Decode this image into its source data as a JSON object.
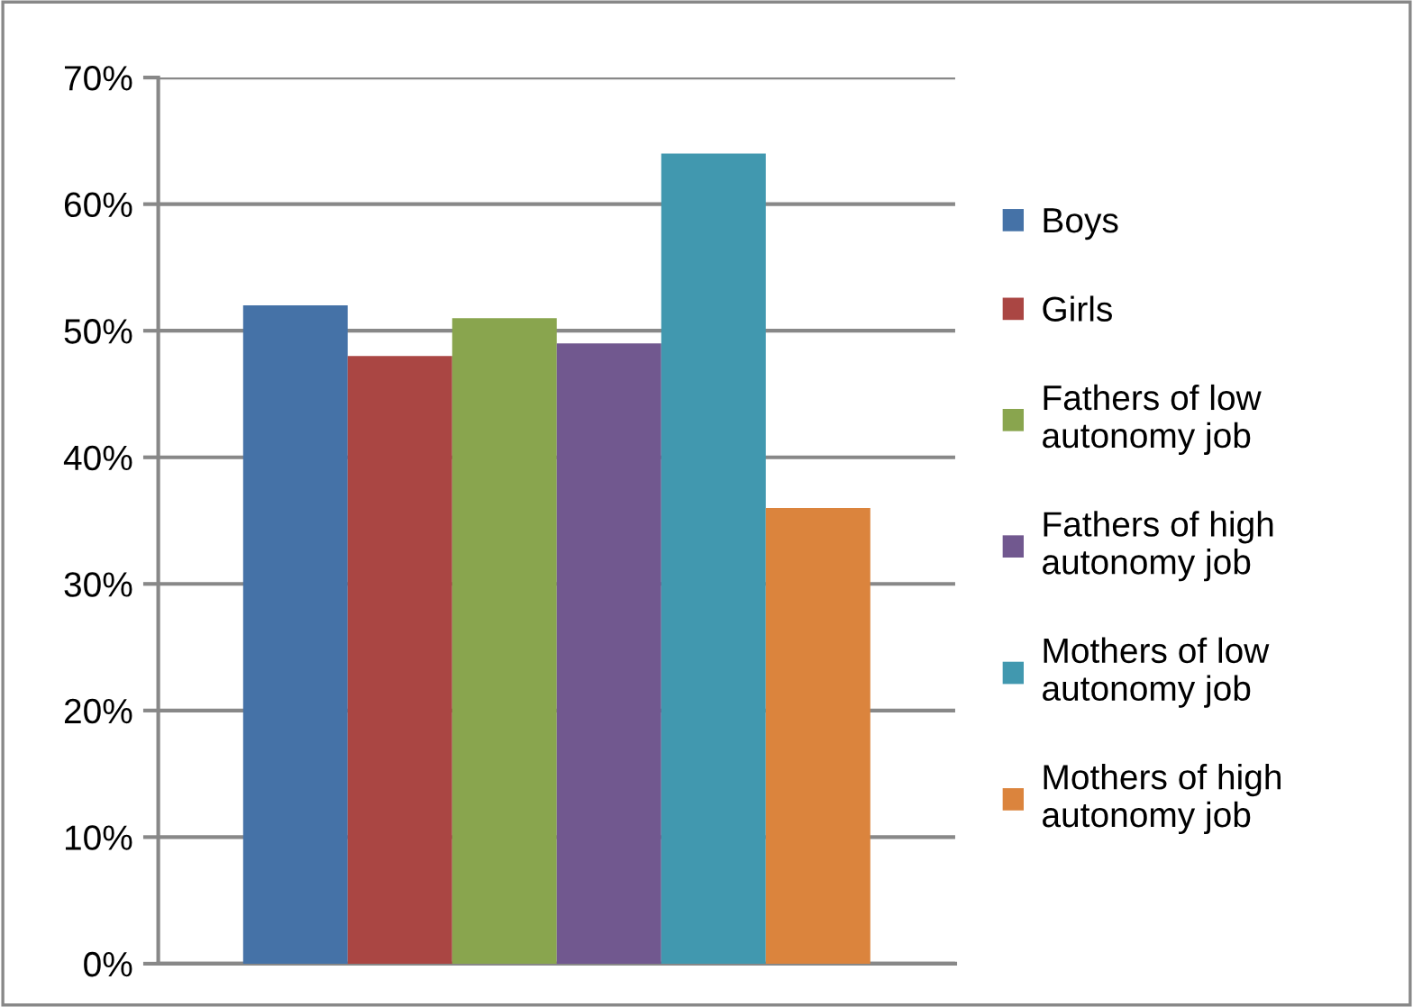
{
  "chart_data": {
    "type": "bar",
    "categories": [
      null
    ],
    "series": [
      {
        "name": "Boys",
        "color": "#4572a7",
        "values": [
          52
        ]
      },
      {
        "name": "Girls",
        "color": "#aa4643",
        "values": [
          48
        ]
      },
      {
        "name": "Fathers of low\nautonomy job",
        "color": "#89a54e",
        "values": [
          51
        ]
      },
      {
        "name": "Fathers of high\nautonomy job",
        "color": "#71588f",
        "values": [
          49
        ]
      },
      {
        "name": "Mothers of low\nautonomy job",
        "color": "#4198af",
        "values": [
          64
        ]
      },
      {
        "name": "Mothers of high\nautonomy job",
        "color": "#db843d",
        "values": [
          36
        ]
      }
    ],
    "ylim": [
      0,
      70
    ],
    "yticks": [
      {
        "value": 0,
        "label": "0%"
      },
      {
        "value": 10,
        "label": "10%"
      },
      {
        "value": 20,
        "label": "20%"
      },
      {
        "value": 30,
        "label": "30%"
      },
      {
        "value": 40,
        "label": "40%"
      },
      {
        "value": 50,
        "label": "50%"
      },
      {
        "value": 60,
        "label": "60%"
      },
      {
        "value": 70,
        "label": "70%"
      }
    ],
    "grid": "y",
    "legend": "right"
  }
}
